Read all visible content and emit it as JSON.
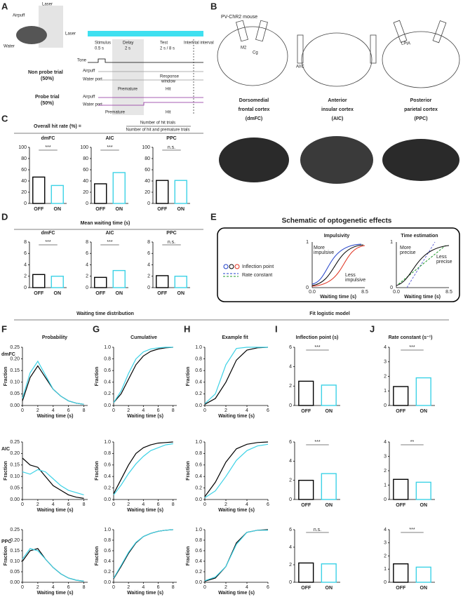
{
  "panel_labels": [
    "A",
    "B",
    "C",
    "D",
    "E",
    "F",
    "G",
    "H",
    "I",
    "J"
  ],
  "panel_a": {
    "laser": "Laser",
    "airpuff": "Airpuff",
    "water": "Water",
    "stimulus": "Stimulus",
    "stim_dur": "0.5 s",
    "delay": "Delay",
    "delay_dur": "2 s",
    "test": "Test",
    "test_dur": "2 s / 8 s",
    "iti": "Intertrial interval",
    "tone": "Tone",
    "airpuff_row": "Airpuff",
    "water_row": "Water port",
    "non_probe": "Non probe trial",
    "non_probe_pct": "(50%)",
    "probe": "Probe trial",
    "probe_pct": "(50%)",
    "premature": "Premature",
    "hit": "Hit",
    "response": "Response",
    "window": "window"
  },
  "panel_b": {
    "mouse": "PV-ChR2 mouse",
    "m2": "M2",
    "cg": "Cg",
    "aic_small": "AI/C",
    "lpta": "LPtA",
    "regions": [
      {
        "lines": [
          "Dorsomedial",
          "frontal cortex",
          "(dmFC)"
        ],
        "color": "#1f3fc8"
      },
      {
        "lines": [
          "Anterior",
          "insular cortex",
          "(AIC)"
        ],
        "color": "#e0301e"
      },
      {
        "lines": [
          "Posterior",
          "parietal cortex",
          "(PPC)"
        ],
        "color": "#1f9a2a"
      }
    ]
  },
  "panel_c": {
    "title": "Overall hit rate (%) =",
    "numerator": "Number of hit trials",
    "denominator": "Number of hit and premature trials"
  },
  "panel_d": {
    "title": "Mean waiting time (s)"
  },
  "panel_e": {
    "title": "Schematic of optogenetic effects",
    "impulsivity": "Impulsivity",
    "time_estimation": "Time estimation",
    "more_impulsive": [
      "More",
      "impulsive"
    ],
    "less_impulsive": [
      "Less",
      "impulsive"
    ],
    "more_precise": [
      "More",
      "precise"
    ],
    "less_precise": [
      "Less",
      "precise"
    ],
    "inflection": "Inflection point",
    "rate": "Rate constant",
    "xlabel": "Waiting time (s)",
    "ticks": [
      "0.0",
      "8.5",
      "1",
      "0"
    ]
  },
  "sections": [
    "Waiting time distribution",
    "Fit logistic model"
  ],
  "columns": [
    "Probability",
    "Cumulative",
    "Example fit",
    "Inflection point (s)",
    "Rate constant (s⁻¹)"
  ],
  "rows": [
    {
      "label": "dmFC",
      "color": "#1f3fc8"
    },
    {
      "label": "AIC",
      "color": "#e0301e"
    },
    {
      "label": "PPC",
      "color": "#1f9a2a"
    }
  ],
  "chart_data": [
    {
      "type": "bar",
      "title": "dmFC",
      "title_color": "#1f3fc8",
      "categories": [
        "OFF",
        "ON"
      ],
      "values": [
        47,
        32
      ],
      "colors": [
        "#000000",
        "#3cd2e6"
      ],
      "annotation": "***",
      "ylim": [
        0,
        100
      ],
      "yticks": [
        0,
        20,
        40,
        60,
        80,
        100
      ]
    },
    {
      "type": "bar",
      "title": "AIC",
      "title_color": "#e0301e",
      "categories": [
        "OFF",
        "ON"
      ],
      "values": [
        35,
        55
      ],
      "colors": [
        "#000000",
        "#3cd2e6"
      ],
      "annotation": "***",
      "ylim": [
        0,
        100
      ],
      "yticks": [
        0,
        20,
        40,
        60,
        80,
        100
      ]
    },
    {
      "type": "bar",
      "title": "PPC",
      "title_color": "#1f9a2a",
      "categories": [
        "OFF",
        "ON"
      ],
      "values": [
        41,
        41
      ],
      "colors": [
        "#000000",
        "#3cd2e6"
      ],
      "annotation": "n.s.",
      "ylim": [
        0,
        100
      ],
      "yticks": [
        0,
        20,
        40,
        60,
        80,
        100
      ]
    },
    {
      "type": "bar",
      "title": "dmFC",
      "title_color": "#1f3fc8",
      "categories": [
        "OFF",
        "ON"
      ],
      "values": [
        2.3,
        2.0
      ],
      "colors": [
        "#000000",
        "#3cd2e6"
      ],
      "annotation": "***",
      "ylim": [
        0,
        8
      ],
      "yticks": [
        0,
        2,
        4,
        6,
        8
      ]
    },
    {
      "type": "bar",
      "title": "AIC",
      "title_color": "#e0301e",
      "categories": [
        "OFF",
        "ON"
      ],
      "values": [
        1.8,
        3.0
      ],
      "colors": [
        "#000000",
        "#3cd2e6"
      ],
      "annotation": "***",
      "ylim": [
        0,
        8
      ],
      "yticks": [
        0,
        2,
        4,
        6,
        8
      ]
    },
    {
      "type": "bar",
      "title": "PPC",
      "title_color": "#1f9a2a",
      "categories": [
        "OFF",
        "ON"
      ],
      "values": [
        2.1,
        2.0
      ],
      "colors": [
        "#000000",
        "#3cd2e6"
      ],
      "annotation": "n.s.",
      "ylim": [
        0,
        8
      ],
      "yticks": [
        0,
        2,
        4,
        6,
        8
      ]
    },
    {
      "type": "line",
      "xlabel": "Waiting time (s)",
      "ylabel": "Fraction",
      "x": [
        0,
        1,
        2,
        3,
        4,
        5,
        6,
        7,
        8
      ],
      "xlim": [
        0,
        8.5
      ],
      "xticks": [
        0,
        2,
        4,
        6,
        8
      ],
      "ylim": [
        0,
        0.25
      ],
      "yticks": [
        {
          "value": 0,
          "label": "0.00"
        },
        {
          "value": 0.05,
          "label": "0.05"
        },
        {
          "value": 0.1,
          "label": "0.10"
        },
        {
          "value": 0.15,
          "label": "0.15"
        },
        {
          "value": 0.2,
          "label": "0.20"
        },
        {
          "value": 0.25,
          "label": "0.25"
        }
      ],
      "series": [
        {
          "color": "#000000",
          "values": [
            0.02,
            0.12,
            0.17,
            0.12,
            0.07,
            0.04,
            0.02,
            0.01,
            0.005
          ]
        },
        {
          "color": "#3cd2e6",
          "values": [
            0.03,
            0.14,
            0.19,
            0.13,
            0.07,
            0.04,
            0.02,
            0.01,
            0.005
          ]
        }
      ]
    },
    {
      "type": "line",
      "xlabel": "Waiting time (s)",
      "ylabel": "Fraction",
      "x": [
        0,
        1,
        2,
        3,
        4,
        5,
        6,
        7,
        8
      ],
      "xlim": [
        0,
        8.5
      ],
      "xticks": [
        0,
        2,
        4,
        6,
        8
      ],
      "ylim": [
        0,
        0.25
      ],
      "yticks": [
        {
          "value": 0,
          "label": "0.00"
        },
        {
          "value": 0.05,
          "label": "0.05"
        },
        {
          "value": 0.1,
          "label": "0.10"
        },
        {
          "value": 0.15,
          "label": "0.15"
        },
        {
          "value": 0.2,
          "label": "0.20"
        },
        {
          "value": 0.25,
          "label": "0.25"
        }
      ],
      "series": [
        {
          "color": "#000000",
          "values": [
            0.18,
            0.15,
            0.14,
            0.1,
            0.06,
            0.04,
            0.02,
            0.01,
            0.005
          ]
        },
        {
          "color": "#3cd2e6",
          "values": [
            0.12,
            0.11,
            0.13,
            0.12,
            0.09,
            0.06,
            0.04,
            0.03,
            0.02
          ]
        }
      ]
    },
    {
      "type": "line",
      "xlabel": "Waiting time (s)",
      "ylabel": "Fraction",
      "x": [
        0,
        1,
        2,
        3,
        4,
        5,
        6,
        7,
        8
      ],
      "xlim": [
        0,
        8.5
      ],
      "xticks": [
        0,
        2,
        4,
        6,
        8
      ],
      "ylim": [
        0,
        0.25
      ],
      "yticks": [
        {
          "value": 0,
          "label": "0.00"
        },
        {
          "value": 0.05,
          "label": "0.05"
        },
        {
          "value": 0.1,
          "label": "0.10"
        },
        {
          "value": 0.15,
          "label": "0.15"
        },
        {
          "value": 0.2,
          "label": "0.20"
        },
        {
          "value": 0.25,
          "label": "0.25"
        }
      ],
      "series": [
        {
          "color": "#000000",
          "values": [
            0.1,
            0.15,
            0.16,
            0.11,
            0.07,
            0.04,
            0.02,
            0.01,
            0.005
          ]
        },
        {
          "color": "#3cd2e6",
          "values": [
            0.11,
            0.16,
            0.15,
            0.11,
            0.07,
            0.04,
            0.02,
            0.01,
            0.005
          ]
        }
      ]
    },
    {
      "type": "line",
      "xlabel": "Waiting time (s)",
      "ylabel": "Fraction",
      "x": [
        0,
        1,
        2,
        3,
        4,
        5,
        6,
        7,
        8
      ],
      "xlim": [
        0,
        8.5
      ],
      "xticks": [
        0,
        2,
        4,
        6,
        8
      ],
      "ylim": [
        0,
        1
      ],
      "yticks": [
        {
          "value": 0,
          "label": "0.0"
        },
        0.2,
        0.4,
        0.6,
        0.8,
        {
          "value": 1,
          "label": "1.0"
        }
      ],
      "series": [
        {
          "color": "#000000",
          "values": [
            0.05,
            0.2,
            0.45,
            0.7,
            0.85,
            0.93,
            0.97,
            0.99,
            1.0
          ]
        },
        {
          "color": "#3cd2e6",
          "values": [
            0.05,
            0.25,
            0.55,
            0.8,
            0.92,
            0.97,
            0.99,
            1.0,
            1.0
          ]
        }
      ]
    },
    {
      "type": "line",
      "xlabel": "Waiting time (s)",
      "ylabel": "Fraction",
      "x": [
        0,
        1,
        2,
        3,
        4,
        5,
        6,
        7,
        8
      ],
      "xlim": [
        0,
        8.5
      ],
      "xticks": [
        0,
        2,
        4,
        6,
        8
      ],
      "ylim": [
        0,
        1
      ],
      "yticks": [
        {
          "value": 0,
          "label": "0.0"
        },
        0.2,
        0.4,
        0.6,
        0.8,
        {
          "value": 1,
          "label": "1.0"
        }
      ],
      "series": [
        {
          "color": "#000000",
          "values": [
            0.1,
            0.35,
            0.6,
            0.8,
            0.9,
            0.95,
            0.98,
            0.99,
            1.0
          ]
        },
        {
          "color": "#3cd2e6",
          "values": [
            0.08,
            0.25,
            0.45,
            0.62,
            0.75,
            0.85,
            0.9,
            0.95,
            0.97
          ]
        }
      ]
    },
    {
      "type": "line",
      "xlabel": "Waiting time (s)",
      "ylabel": "Fraction",
      "x": [
        0,
        1,
        2,
        3,
        4,
        5,
        6,
        7,
        8
      ],
      "xlim": [
        0,
        8.5
      ],
      "xticks": [
        0,
        2,
        4,
        6,
        8
      ],
      "ylim": [
        0,
        1
      ],
      "yticks": [
        {
          "value": 0,
          "label": "0.0"
        },
        0.2,
        0.4,
        0.6,
        0.8,
        {
          "value": 1,
          "label": "1.0"
        }
      ],
      "series": [
        {
          "color": "#000000",
          "values": [
            0.07,
            0.3,
            0.55,
            0.75,
            0.87,
            0.93,
            0.97,
            0.99,
            1.0
          ]
        },
        {
          "color": "#3cd2e6",
          "values": [
            0.08,
            0.32,
            0.57,
            0.76,
            0.87,
            0.93,
            0.97,
            0.99,
            1.0
          ]
        }
      ]
    },
    {
      "type": "line",
      "xlabel": "Waiting time (s)",
      "ylabel": "Fraction",
      "x": [
        0,
        1,
        2,
        3,
        4,
        5,
        6
      ],
      "xlim": [
        0,
        6
      ],
      "xticks": [
        0,
        2,
        4,
        6
      ],
      "ylim": [
        0,
        1
      ],
      "yticks": [
        {
          "value": 0,
          "label": "0.0"
        },
        0.2,
        0.4,
        0.6,
        0.8,
        {
          "value": 1,
          "label": "1.0"
        }
      ],
      "series": [
        {
          "color": "#000000",
          "values": [
            0.02,
            0.12,
            0.4,
            0.78,
            0.95,
            0.99,
            1.0
          ]
        },
        {
          "color": "#3cd2e6",
          "values": [
            0.03,
            0.2,
            0.7,
            0.98,
            1,
            1,
            1
          ]
        }
      ]
    },
    {
      "type": "line",
      "xlabel": "Waiting time (s)",
      "ylabel": "Fraction",
      "x": [
        0,
        1,
        2,
        3,
        4,
        5,
        6
      ],
      "xlim": [
        0,
        6
      ],
      "xticks": [
        0,
        2,
        4,
        6
      ],
      "ylim": [
        0,
        1
      ],
      "yticks": [
        {
          "value": 0,
          "label": "0.0"
        },
        0.2,
        0.4,
        0.6,
        0.8,
        {
          "value": 1,
          "label": "1.0"
        }
      ],
      "series": [
        {
          "color": "#000000",
          "values": [
            0.05,
            0.3,
            0.65,
            0.88,
            0.96,
            0.99,
            1.0
          ]
        },
        {
          "color": "#3cd2e6",
          "values": [
            0.03,
            0.15,
            0.4,
            0.68,
            0.85,
            0.93,
            0.96
          ]
        }
      ]
    },
    {
      "type": "line",
      "xlabel": "Waiting time (s)",
      "ylabel": "Fraction",
      "x": [
        0,
        1,
        2,
        3,
        4,
        5,
        6
      ],
      "xlim": [
        0,
        6
      ],
      "xticks": [
        0,
        2,
        4,
        6
      ],
      "ylim": [
        0,
        1
      ],
      "yticks": [
        {
          "value": 0,
          "label": "0.0"
        },
        0.2,
        0.4,
        0.6,
        0.8,
        {
          "value": 1,
          "label": "1.0"
        }
      ],
      "series": [
        {
          "color": "#000000",
          "values": [
            0.02,
            0.08,
            0.3,
            0.75,
            0.95,
            0.99,
            1.0
          ]
        },
        {
          "color": "#3cd2e6",
          "values": [
            0.03,
            0.1,
            0.3,
            0.72,
            0.95,
            0.99,
            0.99
          ]
        }
      ]
    },
    {
      "type": "bar",
      "categories": [
        "OFF",
        "ON"
      ],
      "values": [
        2.5,
        2.1
      ],
      "colors": [
        "#000000",
        "#3cd2e6"
      ],
      "annotation": "***",
      "ylim": [
        0,
        6
      ],
      "yticks": [
        0,
        2,
        4,
        6
      ]
    },
    {
      "type": "bar",
      "categories": [
        "OFF",
        "ON"
      ],
      "values": [
        2.0,
        2.7
      ],
      "colors": [
        "#000000",
        "#3cd2e6"
      ],
      "annotation": "***",
      "ylim": [
        0,
        6
      ],
      "yticks": [
        0,
        2,
        4,
        6
      ]
    },
    {
      "type": "bar",
      "categories": [
        "OFF",
        "ON"
      ],
      "values": [
        2.2,
        2.1
      ],
      "colors": [
        "#000000",
        "#3cd2e6"
      ],
      "annotation": "n.s.",
      "ylim": [
        0,
        6
      ],
      "yticks": [
        0,
        2,
        4,
        6
      ]
    },
    {
      "type": "bar",
      "categories": [
        "OFF",
        "ON"
      ],
      "values": [
        1.3,
        1.9
      ],
      "colors": [
        "#000000",
        "#3cd2e6"
      ],
      "annotation": "***",
      "ylim": [
        0,
        4
      ],
      "yticks": [
        0,
        1,
        2,
        3,
        4
      ]
    },
    {
      "type": "bar",
      "categories": [
        "OFF",
        "ON"
      ],
      "values": [
        1.4,
        1.2
      ],
      "colors": [
        "#000000",
        "#3cd2e6"
      ],
      "annotation": "**",
      "ylim": [
        0,
        4
      ],
      "yticks": [
        0,
        1,
        2,
        3,
        4
      ]
    },
    {
      "type": "bar",
      "categories": [
        "OFF",
        "ON"
      ],
      "values": [
        1.4,
        1.15
      ],
      "colors": [
        "#000000",
        "#3cd2e6"
      ],
      "annotation": "***",
      "ylim": [
        0,
        4
      ],
      "yticks": [
        0,
        1,
        2,
        3,
        4
      ]
    }
  ]
}
